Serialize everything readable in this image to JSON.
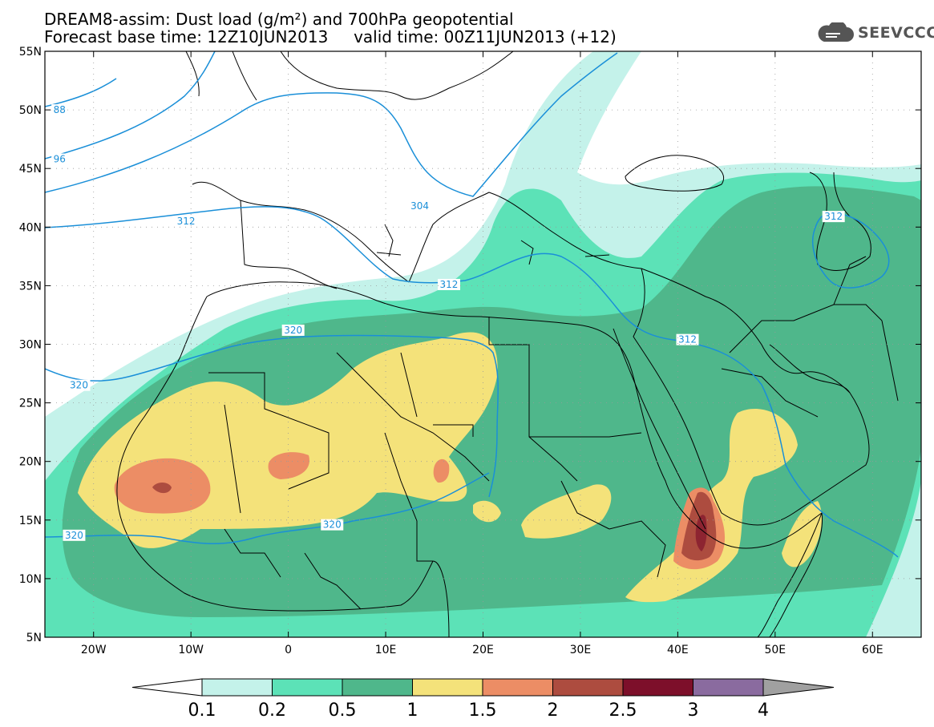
{
  "title": {
    "line1": "DREAM8-assim: Dust load (g/m²) and 700hPa geopotential",
    "line2": "Forecast base time: 12Z10JUN2013     valid time: 00Z11JUN2013 (+12)"
  },
  "logo": {
    "text": "SEEVCCC",
    "icon": "cloud-icon"
  },
  "map_data": {
    "projection": "lat-lon",
    "lon_range": [
      -25,
      65
    ],
    "lat_range": [
      5,
      55
    ],
    "lat_ticks": [
      {
        "value": 55,
        "label": "55N"
      },
      {
        "value": 50,
        "label": "50N"
      },
      {
        "value": 45,
        "label": "45N"
      },
      {
        "value": 40,
        "label": "40N"
      },
      {
        "value": 35,
        "label": "35N"
      },
      {
        "value": 30,
        "label": "30N"
      },
      {
        "value": 25,
        "label": "25N"
      },
      {
        "value": 20,
        "label": "20N"
      },
      {
        "value": 15,
        "label": "15N"
      },
      {
        "value": 10,
        "label": "10N"
      },
      {
        "value": 5,
        "label": "5N"
      }
    ],
    "lon_ticks": [
      {
        "value": -20,
        "label": "20W"
      },
      {
        "value": -10,
        "label": "10W"
      },
      {
        "value": 0,
        "label": "0"
      },
      {
        "value": 10,
        "label": "10E"
      },
      {
        "value": 20,
        "label": "20E"
      },
      {
        "value": 30,
        "label": "30E"
      },
      {
        "value": 40,
        "label": "40E"
      },
      {
        "value": 50,
        "label": "50E"
      },
      {
        "value": 60,
        "label": "60E"
      }
    ],
    "grid": true,
    "contour_labels": [
      {
        "text": "88",
        "lon": -23.5,
        "lat": 50.0
      },
      {
        "text": "96",
        "lon": -23.5,
        "lat": 45.8
      },
      {
        "text": "304",
        "lon": 13.5,
        "lat": 41.8
      },
      {
        "text": "312",
        "lon": -10.5,
        "lat": 40.5
      },
      {
        "text": "312",
        "lon": 16.5,
        "lat": 35.1
      },
      {
        "text": "312",
        "lon": 41.0,
        "lat": 30.4
      },
      {
        "text": "312",
        "lon": 56.0,
        "lat": 40.9
      },
      {
        "text": "320",
        "lon": 0.5,
        "lat": 31.2
      },
      {
        "text": "320",
        "lon": -21.5,
        "lat": 26.5
      },
      {
        "text": "320",
        "lon": -22.0,
        "lat": 13.7
      },
      {
        "text": "320",
        "lon": 4.5,
        "lat": 14.6
      }
    ]
  },
  "colorbar": {
    "levels": [
      "0.1",
      "0.2",
      "0.5",
      "1",
      "1.5",
      "2",
      "2.5",
      "3",
      "4"
    ],
    "colors": [
      "#c4f2ea",
      "#5ce2b7",
      "#4fb78b",
      "#f4e27a",
      "#ec8d65",
      "#ad4c3f",
      "#7d0f2a",
      "#8a6b9f"
    ],
    "below_color": "#ffffff",
    "above_color": "#a0a0a0"
  },
  "colors": {
    "contour": "#1a8fd8",
    "boundary": "#000000"
  }
}
